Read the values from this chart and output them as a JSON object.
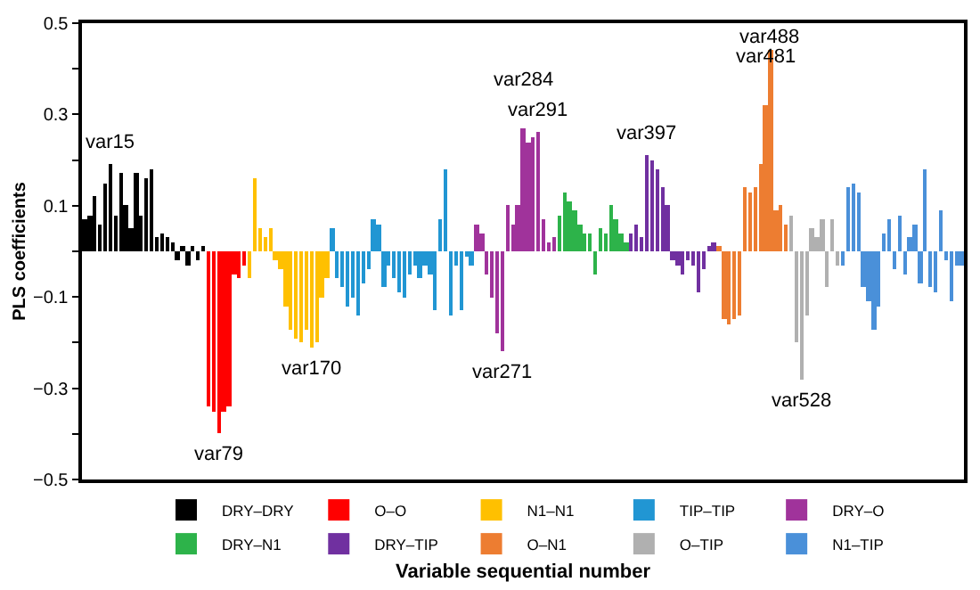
{
  "chart_data": {
    "type": "bar",
    "xlabel": "Variable sequential number",
    "ylabel": "PLS coefficients",
    "ylim": [
      -0.5,
      0.5
    ],
    "yticks": [
      {
        "value": -0.5,
        "label": "−0.5"
      },
      {
        "value": -0.4,
        "label": null
      },
      {
        "value": -0.3,
        "label": "−0.3"
      },
      {
        "value": -0.2,
        "label": null
      },
      {
        "value": -0.1,
        "label": "−0.1"
      },
      {
        "value": 0,
        "label": null
      },
      {
        "value": 0.1,
        "label": "0.1"
      },
      {
        "value": 0.2,
        "label": null
      },
      {
        "value": 0.3,
        "label": "0.3"
      },
      {
        "value": 0.4,
        "label": null
      },
      {
        "value": 0.5,
        "label": "0.5"
      }
    ],
    "tick_labels": "y",
    "legend": "bottom",
    "categories": [
      null,
      null,
      null,
      null,
      null,
      null,
      null,
      null,
      null,
      null,
      null,
      null,
      null,
      null,
      null,
      null,
      null,
      null,
      null,
      null,
      null,
      null,
      null,
      null,
      null,
      null,
      null,
      null,
      null,
      null,
      null,
      null,
      null,
      null,
      null,
      null,
      null,
      null,
      null,
      null,
      null,
      null,
      null,
      null,
      null,
      null,
      null,
      null,
      null,
      null,
      null,
      null,
      null,
      null,
      null,
      null,
      null,
      null,
      null,
      null,
      null,
      null,
      null,
      null,
      null,
      null,
      null,
      null,
      null,
      null,
      null,
      null,
      null,
      null,
      null,
      null,
      null,
      null,
      null,
      null,
      null,
      null,
      null,
      null,
      null,
      null,
      null,
      null,
      null,
      null,
      null,
      null,
      null,
      null,
      null,
      null,
      null,
      null,
      null,
      null,
      null,
      null,
      null,
      null,
      null,
      null,
      null,
      null,
      null,
      null,
      null,
      null,
      null,
      null,
      null,
      null,
      null,
      null,
      null,
      null,
      null,
      null,
      null,
      null,
      null,
      null,
      null,
      null,
      null,
      null,
      null,
      null,
      null,
      null,
      null,
      null,
      null,
      null,
      null,
      null,
      null,
      null,
      null,
      null,
      null,
      null,
      null,
      null,
      null,
      null,
      null,
      null,
      null,
      null,
      null,
      null,
      null,
      null,
      null,
      null,
      null,
      null,
      null,
      null,
      null,
      null,
      null,
      null,
      null,
      null,
      null
    ],
    "series": [
      {
        "name": "DRY–DRY",
        "color": "#000000",
        "values": [
          0.07,
          0.08,
          0.12,
          0.06,
          0.15,
          0.19,
          0.08,
          0.17,
          0.1,
          0.05,
          0.17,
          0.08,
          0.16,
          0.18,
          0.03,
          0.04,
          0.03,
          0.02,
          -0.02,
          0.01,
          -0.03,
          0.01,
          -0.02,
          0.01,
          null,
          null,
          null,
          null,
          null,
          null,
          null,
          null,
          null,
          null,
          null,
          null,
          null,
          null,
          null,
          null,
          null,
          null,
          null,
          null,
          null,
          null,
          null,
          null,
          null,
          null,
          null,
          null,
          null,
          null,
          null,
          null,
          null,
          null,
          null,
          null,
          null,
          null,
          null,
          null,
          null,
          null,
          null,
          null,
          null,
          null,
          null,
          null,
          null,
          null,
          null,
          null,
          null,
          null,
          null,
          null,
          null,
          null,
          null,
          null,
          null,
          null,
          null,
          null,
          null,
          null,
          null,
          null,
          null,
          null,
          null,
          null,
          null,
          null,
          null,
          null,
          null,
          null,
          null,
          null,
          null,
          null,
          null,
          null,
          null,
          null,
          null,
          null,
          null,
          null,
          null,
          null,
          null,
          null,
          null,
          null,
          null,
          null,
          null,
          null,
          null,
          null,
          null,
          null,
          null,
          null,
          null,
          null,
          null,
          null,
          null,
          null,
          null,
          null,
          null,
          null,
          null,
          null,
          null,
          null,
          null,
          null,
          null,
          null,
          null,
          null,
          null,
          null,
          null,
          null,
          null,
          null,
          null,
          null,
          null,
          null,
          null,
          null,
          null,
          null,
          null,
          null,
          null,
          null,
          null,
          null,
          null
        ]
      },
      {
        "name": "O–O",
        "color": "#ff0000",
        "values": [
          null,
          null,
          null,
          null,
          null,
          null,
          null,
          null,
          null,
          null,
          null,
          null,
          null,
          null,
          null,
          null,
          null,
          null,
          null,
          null,
          null,
          null,
          null,
          null,
          -0.34,
          -0.35,
          -0.4,
          -0.35,
          -0.34,
          -0.05,
          -0.06,
          -0.03,
          null,
          null,
          null,
          null,
          null,
          null,
          null,
          null,
          null,
          null,
          null,
          null,
          null,
          null,
          null,
          null,
          null,
          null,
          null,
          null,
          null,
          null,
          null,
          null,
          null,
          null,
          null,
          null,
          null,
          null,
          null,
          null,
          null,
          null,
          null,
          null,
          null,
          null,
          null,
          null,
          null,
          null,
          null,
          null,
          null,
          null,
          null,
          null,
          null,
          null,
          null,
          null,
          null,
          null,
          null,
          null,
          null,
          null,
          null,
          null,
          null,
          null,
          null,
          null,
          null,
          null,
          null,
          null,
          null,
          null,
          null,
          null,
          null,
          null,
          null,
          null,
          null,
          null,
          null,
          null,
          null,
          null,
          null,
          null,
          null,
          null,
          null,
          null,
          null,
          null,
          null,
          null,
          null,
          null,
          null,
          null,
          null,
          null,
          null,
          null,
          null,
          null,
          null,
          null,
          null,
          null,
          null,
          null,
          null,
          null,
          null,
          null,
          null,
          null,
          null,
          null,
          null,
          null,
          null,
          null,
          null,
          null,
          null,
          null,
          null,
          null,
          null,
          null,
          null,
          null,
          null,
          null,
          null,
          null,
          null,
          null,
          null,
          null,
          null
        ]
      },
      {
        "name": "N1–N1",
        "color": "#ffc000",
        "values": [
          null,
          null,
          null,
          null,
          null,
          null,
          null,
          null,
          null,
          null,
          null,
          null,
          null,
          null,
          null,
          null,
          null,
          null,
          null,
          null,
          null,
          null,
          null,
          null,
          null,
          null,
          null,
          null,
          null,
          null,
          null,
          null,
          -0.06,
          0.16,
          0.05,
          0.03,
          0.05,
          -0.02,
          -0.04,
          -0.12,
          -0.17,
          -0.19,
          -0.2,
          -0.17,
          -0.21,
          -0.2,
          -0.1,
          -0.06,
          null,
          null,
          null,
          null,
          null,
          null,
          null,
          null,
          null,
          null,
          null,
          null,
          null,
          null,
          null,
          null,
          null,
          null,
          null,
          null,
          null,
          null,
          null,
          null,
          null,
          null,
          null,
          null,
          null,
          null,
          null,
          null,
          null,
          null,
          null,
          null,
          null,
          null,
          null,
          null,
          null,
          null,
          null,
          null,
          null,
          null,
          null,
          null,
          null,
          null,
          null,
          null,
          null,
          null,
          null,
          null,
          null,
          null,
          null,
          null,
          null,
          null,
          null,
          null,
          null,
          null,
          null,
          null,
          null,
          null,
          null,
          null,
          null,
          null,
          null,
          null,
          null,
          null,
          null,
          null,
          null,
          null,
          null,
          null,
          null,
          null,
          null,
          null,
          null,
          null,
          null,
          null,
          null,
          null,
          null,
          null,
          null,
          null,
          null,
          null,
          null,
          null,
          null,
          null,
          null,
          null,
          null,
          null,
          null,
          null,
          null,
          null,
          null,
          null,
          null,
          null,
          null,
          null,
          null,
          null,
          null,
          null,
          null
        ]
      },
      {
        "name": "TIP–TIP",
        "color": "#2196d3",
        "values": [
          null,
          null,
          null,
          null,
          null,
          null,
          null,
          null,
          null,
          null,
          null,
          null,
          null,
          null,
          null,
          null,
          null,
          null,
          null,
          null,
          null,
          null,
          null,
          null,
          null,
          null,
          null,
          null,
          null,
          null,
          null,
          null,
          null,
          null,
          null,
          null,
          null,
          null,
          null,
          null,
          null,
          null,
          null,
          null,
          null,
          null,
          null,
          null,
          0.05,
          -0.06,
          -0.08,
          -0.12,
          -0.1,
          -0.14,
          -0.07,
          -0.04,
          0.07,
          0.06,
          -0.08,
          -0.03,
          -0.06,
          -0.09,
          -0.1,
          -0.05,
          -0.03,
          -0.06,
          -0.03,
          -0.05,
          -0.13,
          0.07,
          0.18,
          -0.14,
          -0.03,
          -0.13,
          -0.01,
          -0.03,
          null,
          null,
          null,
          null,
          null,
          null,
          null,
          null,
          null,
          null,
          null,
          null,
          null,
          null,
          null,
          null,
          null,
          null,
          null,
          null,
          null,
          null,
          null,
          null,
          null,
          null,
          null,
          null,
          null,
          null,
          null,
          null,
          null,
          null,
          null,
          null,
          null,
          null,
          null,
          null,
          null,
          null,
          null,
          null,
          null,
          null,
          null,
          null,
          null,
          null,
          null,
          null,
          null,
          null,
          null,
          null,
          null,
          null,
          null,
          null,
          null,
          null,
          null,
          null,
          null,
          null,
          null,
          null,
          null,
          null,
          null,
          null,
          null,
          null,
          null,
          null,
          null,
          null,
          null,
          null,
          null,
          null,
          null,
          null,
          null,
          null,
          null,
          null,
          null,
          null,
          null,
          null,
          null,
          null,
          null
        ]
      },
      {
        "name": "DRY–O",
        "color": "#a0339b",
        "values": [
          null,
          null,
          null,
          null,
          null,
          null,
          null,
          null,
          null,
          null,
          null,
          null,
          null,
          null,
          null,
          null,
          null,
          null,
          null,
          null,
          null,
          null,
          null,
          null,
          null,
          null,
          null,
          null,
          null,
          null,
          null,
          null,
          null,
          null,
          null,
          null,
          null,
          null,
          null,
          null,
          null,
          null,
          null,
          null,
          null,
          null,
          null,
          null,
          null,
          null,
          null,
          null,
          null,
          null,
          null,
          null,
          null,
          null,
          null,
          null,
          null,
          null,
          null,
          null,
          null,
          null,
          null,
          null,
          null,
          null,
          null,
          null,
          null,
          null,
          null,
          null,
          0.06,
          0.04,
          -0.05,
          -0.1,
          -0.18,
          -0.22,
          0.1,
          0.06,
          0.1,
          0.27,
          0.24,
          0.25,
          0.26,
          0.07,
          0.02,
          0.03,
          null,
          null,
          null,
          null,
          null,
          null,
          null,
          null,
          null,
          null,
          null,
          null,
          null,
          null,
          null,
          null,
          null,
          null,
          null,
          null,
          null,
          null,
          null,
          null,
          null,
          null,
          null,
          null,
          null,
          null,
          null,
          null,
          null,
          null,
          null,
          null,
          null,
          null,
          null,
          null,
          null,
          null,
          null,
          null,
          null,
          null,
          null,
          null,
          null,
          null,
          null,
          null,
          null,
          null,
          null,
          null,
          null,
          null,
          null,
          null,
          null,
          null,
          null,
          null,
          null,
          null,
          null,
          null,
          null,
          null,
          null,
          null,
          null,
          null,
          null,
          null,
          null,
          null,
          null
        ]
      },
      {
        "name": "DRY–N1",
        "color": "#2db34a",
        "values": [
          null,
          null,
          null,
          null,
          null,
          null,
          null,
          null,
          null,
          null,
          null,
          null,
          null,
          null,
          null,
          null,
          null,
          null,
          null,
          null,
          null,
          null,
          null,
          null,
          null,
          null,
          null,
          null,
          null,
          null,
          null,
          null,
          null,
          null,
          null,
          null,
          null,
          null,
          null,
          null,
          null,
          null,
          null,
          null,
          null,
          null,
          null,
          null,
          null,
          null,
          null,
          null,
          null,
          null,
          null,
          null,
          null,
          null,
          null,
          null,
          null,
          null,
          null,
          null,
          null,
          null,
          null,
          null,
          null,
          null,
          null,
          null,
          null,
          null,
          null,
          null,
          null,
          null,
          null,
          null,
          null,
          null,
          null,
          null,
          null,
          null,
          null,
          null,
          null,
          null,
          null,
          null,
          0.08,
          0.13,
          0.11,
          0.09,
          0.06,
          0.04,
          0.04,
          -0.05,
          0.05,
          0.04,
          0.1,
          0.07,
          0.04,
          0.02,
          null,
          null,
          null,
          null,
          null,
          null,
          null,
          null,
          null,
          null,
          null,
          null,
          null,
          null,
          null,
          null,
          null,
          null,
          null,
          null,
          null,
          null,
          null,
          null,
          null,
          null,
          null,
          null,
          null,
          null,
          null,
          null,
          null,
          null,
          null,
          null,
          null,
          null,
          null,
          null,
          null,
          null,
          null,
          null,
          null,
          null,
          null,
          null,
          null,
          null,
          null,
          null,
          null,
          null,
          null,
          null,
          null,
          null,
          null,
          null,
          null,
          null,
          null,
          null,
          null
        ]
      },
      {
        "name": "DRY–TIP",
        "color": "#7030a0",
        "values": [
          null,
          null,
          null,
          null,
          null,
          null,
          null,
          null,
          null,
          null,
          null,
          null,
          null,
          null,
          null,
          null,
          null,
          null,
          null,
          null,
          null,
          null,
          null,
          null,
          null,
          null,
          null,
          null,
          null,
          null,
          null,
          null,
          null,
          null,
          null,
          null,
          null,
          null,
          null,
          null,
          null,
          null,
          null,
          null,
          null,
          null,
          null,
          null,
          null,
          null,
          null,
          null,
          null,
          null,
          null,
          null,
          null,
          null,
          null,
          null,
          null,
          null,
          null,
          null,
          null,
          null,
          null,
          null,
          null,
          null,
          null,
          null,
          null,
          null,
          null,
          null,
          null,
          null,
          null,
          null,
          null,
          null,
          null,
          null,
          null,
          null,
          null,
          null,
          null,
          null,
          null,
          null,
          null,
          null,
          null,
          null,
          null,
          null,
          null,
          null,
          null,
          null,
          null,
          null,
          null,
          null,
          0.04,
          0.06,
          0.03,
          0.21,
          0.2,
          0.18,
          0.14,
          0.1,
          -0.02,
          -0.03,
          -0.05,
          -0.02,
          -0.03,
          -0.09,
          -0.04,
          0.01,
          0.02,
          null,
          null,
          null,
          null,
          null,
          null,
          null,
          null,
          null,
          null,
          null,
          null,
          null,
          null,
          null,
          null,
          null,
          null,
          null,
          null,
          null,
          null,
          null,
          null,
          null,
          null,
          null,
          null,
          null,
          null,
          null,
          null,
          null,
          null,
          null,
          null,
          null,
          null,
          null,
          null,
          null,
          null,
          null,
          null,
          null,
          null,
          null,
          null
        ]
      },
      {
        "name": "O–N1",
        "color": "#ed7d31",
        "values": [
          null,
          null,
          null,
          null,
          null,
          null,
          null,
          null,
          null,
          null,
          null,
          null,
          null,
          null,
          null,
          null,
          null,
          null,
          null,
          null,
          null,
          null,
          null,
          null,
          null,
          null,
          null,
          null,
          null,
          null,
          null,
          null,
          null,
          null,
          null,
          null,
          null,
          null,
          null,
          null,
          null,
          null,
          null,
          null,
          null,
          null,
          null,
          null,
          null,
          null,
          null,
          null,
          null,
          null,
          null,
          null,
          null,
          null,
          null,
          null,
          null,
          null,
          null,
          null,
          null,
          null,
          null,
          null,
          null,
          null,
          null,
          null,
          null,
          null,
          null,
          null,
          null,
          null,
          null,
          null,
          null,
          null,
          null,
          null,
          null,
          null,
          null,
          null,
          null,
          null,
          null,
          null,
          null,
          null,
          null,
          null,
          null,
          null,
          null,
          null,
          null,
          null,
          null,
          null,
          null,
          null,
          null,
          null,
          null,
          null,
          null,
          null,
          null,
          null,
          null,
          null,
          null,
          null,
          null,
          null,
          null,
          null,
          null,
          0.01,
          -0.15,
          -0.16,
          -0.15,
          -0.14,
          0.14,
          0.13,
          0.14,
          0.19,
          0.32,
          0.44,
          0.09,
          0.1,
          0.06,
          null,
          null,
          null,
          null,
          null,
          null,
          null,
          null,
          null,
          null,
          null,
          null,
          null,
          null,
          null,
          null,
          null,
          null,
          null,
          null,
          null,
          null,
          null,
          null,
          null,
          null,
          null,
          null,
          null,
          null,
          null,
          null,
          null,
          null
        ]
      },
      {
        "name": "O–TIP",
        "color": "#b0b0b0",
        "values": [
          null,
          null,
          null,
          null,
          null,
          null,
          null,
          null,
          null,
          null,
          null,
          null,
          null,
          null,
          null,
          null,
          null,
          null,
          null,
          null,
          null,
          null,
          null,
          null,
          null,
          null,
          null,
          null,
          null,
          null,
          null,
          null,
          null,
          null,
          null,
          null,
          null,
          null,
          null,
          null,
          null,
          null,
          null,
          null,
          null,
          null,
          null,
          null,
          null,
          null,
          null,
          null,
          null,
          null,
          null,
          null,
          null,
          null,
          null,
          null,
          null,
          null,
          null,
          null,
          null,
          null,
          null,
          null,
          null,
          null,
          null,
          null,
          null,
          null,
          null,
          null,
          null,
          null,
          null,
          null,
          null,
          null,
          null,
          null,
          null,
          null,
          null,
          null,
          null,
          null,
          null,
          null,
          null,
          null,
          null,
          null,
          null,
          null,
          null,
          null,
          null,
          null,
          null,
          null,
          null,
          null,
          null,
          null,
          null,
          null,
          null,
          null,
          null,
          null,
          null,
          null,
          null,
          null,
          null,
          null,
          null,
          null,
          null,
          null,
          null,
          null,
          null,
          null,
          null,
          null,
          null,
          null,
          null,
          null,
          null,
          null,
          null,
          0.08,
          -0.2,
          -0.28,
          -0.14,
          0.05,
          0.03,
          0.07,
          -0.08,
          0.07,
          -0.03,
          null,
          null,
          null,
          null,
          null,
          null,
          null,
          null,
          null,
          null,
          null,
          null,
          null,
          null,
          null,
          null,
          null,
          null,
          null,
          null,
          null,
          null,
          null,
          null
        ]
      },
      {
        "name": "N1–TIP",
        "color": "#4a90d9",
        "values": [
          null,
          null,
          null,
          null,
          null,
          null,
          null,
          null,
          null,
          null,
          null,
          null,
          null,
          null,
          null,
          null,
          null,
          null,
          null,
          null,
          null,
          null,
          null,
          null,
          null,
          null,
          null,
          null,
          null,
          null,
          null,
          null,
          null,
          null,
          null,
          null,
          null,
          null,
          null,
          null,
          null,
          null,
          null,
          null,
          null,
          null,
          null,
          null,
          null,
          null,
          null,
          null,
          null,
          null,
          null,
          null,
          null,
          null,
          null,
          null,
          null,
          null,
          null,
          null,
          null,
          null,
          null,
          null,
          null,
          null,
          null,
          null,
          null,
          null,
          null,
          null,
          null,
          null,
          null,
          null,
          null,
          null,
          null,
          null,
          null,
          null,
          null,
          null,
          null,
          null,
          null,
          null,
          null,
          null,
          null,
          null,
          null,
          null,
          null,
          null,
          null,
          null,
          null,
          null,
          null,
          null,
          null,
          null,
          null,
          null,
          null,
          null,
          null,
          null,
          null,
          null,
          null,
          null,
          null,
          null,
          null,
          null,
          null,
          null,
          null,
          null,
          null,
          null,
          null,
          null,
          null,
          null,
          null,
          null,
          null,
          null,
          null,
          null,
          null,
          null,
          null,
          null,
          null,
          null,
          null,
          null,
          null,
          -0.03,
          0.14,
          0.15,
          0.13,
          -0.08,
          -0.11,
          -0.17,
          -0.12,
          0.04,
          0.07,
          -0.04,
          0.08,
          -0.05,
          0.03,
          0.06,
          -0.07,
          0.18,
          -0.08,
          -0.09,
          0.09,
          -0.02,
          -0.11,
          -0.03,
          -0.03
        ]
      }
    ],
    "annotations": [
      {
        "text": "var15",
        "y": 0.19
      },
      {
        "text": "var79",
        "y": -0.4
      },
      {
        "text": "var170",
        "y": -0.21
      },
      {
        "text": "var271",
        "y": -0.22
      },
      {
        "text": "var284",
        "y": 0.27
      },
      {
        "text": "var291",
        "y": 0.26
      },
      {
        "text": "var397",
        "y": 0.21
      },
      {
        "text": "var481",
        "y": 0.32
      },
      {
        "text": "var488",
        "y": 0.44
      },
      {
        "text": "var528",
        "y": -0.28
      }
    ]
  }
}
